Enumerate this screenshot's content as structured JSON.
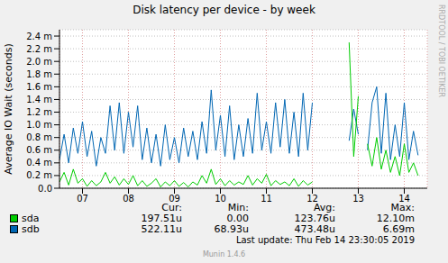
{
  "chart_data": {
    "type": "line",
    "title": "Disk latency per device - by week",
    "y_label": "Average IO Wait (seconds)",
    "x": [
      7,
      7.1,
      7.2,
      7.3,
      7.4,
      7.5,
      7.6,
      7.7,
      7.8,
      7.9,
      8,
      8.1,
      8.2,
      8.3,
      8.4,
      8.5,
      8.6,
      8.7,
      8.8,
      8.9,
      9,
      9.1,
      9.2,
      9.3,
      9.4,
      9.5,
      9.6,
      9.7,
      9.8,
      9.9,
      10,
      10.1,
      10.2,
      10.3,
      10.4,
      10.5,
      10.6,
      10.7,
      10.8,
      10.9,
      11,
      11.1,
      11.2,
      11.3,
      11.4,
      11.5,
      11.6,
      11.7,
      11.8,
      11.9,
      12,
      12.1,
      12.2,
      12.3,
      12.4,
      12.5,
      12.6,
      12.7,
      12.8,
      12.9,
      13,
      13.1,
      13.2,
      13.3,
      13.4,
      13.5,
      13.6,
      13.7,
      13.8,
      13.9,
      14,
      14.1,
      14.2,
      14.3,
      14.4,
      14.5,
      14.6,
      14.7,
      14.8
    ],
    "xlim": [
      7,
      15
    ],
    "xticks": [
      {
        "value": 7.5,
        "label": "07"
      },
      {
        "value": 8.5,
        "label": "08"
      },
      {
        "value": 9.5,
        "label": "09"
      },
      {
        "value": 10.5,
        "label": "10"
      },
      {
        "value": 11.5,
        "label": "11"
      },
      {
        "value": 12.5,
        "label": "12"
      },
      {
        "value": 13.5,
        "label": "13"
      },
      {
        "value": 14.5,
        "label": "14"
      }
    ],
    "ylim": [
      0,
      0.0025
    ],
    "yticks": [
      {
        "value": 0,
        "label": "0.0"
      },
      {
        "value": 0.0002,
        "label": "0.2 m"
      },
      {
        "value": 0.0004,
        "label": "0.4 m"
      },
      {
        "value": 0.0006,
        "label": "0.6 m"
      },
      {
        "value": 0.0008,
        "label": "0.8 m"
      },
      {
        "value": 0.001,
        "label": "1.0 m"
      },
      {
        "value": 0.0012,
        "label": "1.2 m"
      },
      {
        "value": 0.0014,
        "label": "1.4 m"
      },
      {
        "value": 0.0016,
        "label": "1.6 m"
      },
      {
        "value": 0.0018,
        "label": "1.8 m"
      },
      {
        "value": 0.002,
        "label": "2.0 m"
      },
      {
        "value": 0.0022,
        "label": "2.2 m"
      },
      {
        "value": 0.0024,
        "label": "2.4 m"
      }
    ],
    "grid": true,
    "legend": "bottom",
    "stats_header": [
      "Cur:",
      "Min:",
      "Avg:",
      "Max:"
    ],
    "series": [
      {
        "name": "sdb",
        "color": "#0066b3",
        "stats": [
          "522.11u",
          "68.93u",
          "473.48u",
          "6.69m"
        ],
        "values": [
          0.00045,
          0.00085,
          0.0004,
          0.00095,
          0.00055,
          0.00105,
          0.0005,
          0.0009,
          0.00035,
          0.0008,
          0.00055,
          0.0013,
          0.0006,
          0.00135,
          0.00055,
          0.0012,
          0.00065,
          0.0013,
          0.00045,
          0.00095,
          0.0004,
          0.00085,
          0.00035,
          0.001,
          0.00045,
          0.0008,
          0.0004,
          0.00095,
          0.0005,
          0.0009,
          0.00045,
          0.00105,
          0.00055,
          0.00155,
          0.0006,
          0.00115,
          0.0005,
          0.0013,
          0.00045,
          0.001,
          0.0005,
          0.0011,
          0.00055,
          0.0015,
          0.0006,
          0.00105,
          0.00055,
          0.00135,
          0.00065,
          0.0014,
          0.00055,
          0.0012,
          0.0005,
          0.0015,
          0.0006,
          0.00135,
          null,
          null,
          null,
          null,
          null,
          null,
          null,
          0.00075,
          0.00125,
          0.00085,
          null,
          0.0006,
          0.00135,
          0.0016,
          0.00055,
          0.0015,
          0.00045,
          0.001,
          0.0005,
          0.00135,
          0.00045,
          0.0009,
          0.00052
        ]
      },
      {
        "name": "sda",
        "color": "#00cc00",
        "stats": [
          "197.51u",
          "0.00",
          "123.76u",
          "12.10m"
        ],
        "values": [
          0.0001,
          0.00025,
          5e-05,
          0.0003,
          8e-05,
          0.00015,
          3e-05,
          0.00012,
          4e-05,
          0.0001,
          0.00025,
          8e-05,
          0.00018,
          5e-05,
          0.00015,
          6e-05,
          0.0002,
          4e-05,
          0.00012,
          3e-05,
          8e-05,
          0.00015,
          2e-05,
          0.0001,
          4e-05,
          0.00012,
          3e-05,
          9e-05,
          2e-05,
          0.0001,
          5e-05,
          0.0002,
          8e-05,
          0.0003,
          6e-05,
          0.00015,
          4e-05,
          0.00012,
          5e-05,
          0.0001,
          6e-05,
          0.0002,
          5e-05,
          0.00015,
          8e-05,
          0.00022,
          4e-05,
          0.00012,
          6e-05,
          0.0001,
          4e-05,
          0.00015,
          3e-05,
          0.00012,
          5e-05,
          0.0001,
          null,
          null,
          null,
          null,
          null,
          null,
          null,
          0.0023,
          0.0005,
          0.00145,
          null,
          0.0007,
          0.00035,
          0.0008,
          0.0003,
          0.0006,
          0.00025,
          0.0005,
          0.0002,
          0.0007,
          0.00025,
          0.0004,
          0.0002
        ]
      }
    ],
    "legend_order": [
      "sda",
      "sdb"
    ],
    "last_update": "Last update: Thu Feb 14 23:30:05 2019",
    "footer": "Munin 1.4.6",
    "side_text": "RRDTOOL / TOBI OETIKER"
  }
}
